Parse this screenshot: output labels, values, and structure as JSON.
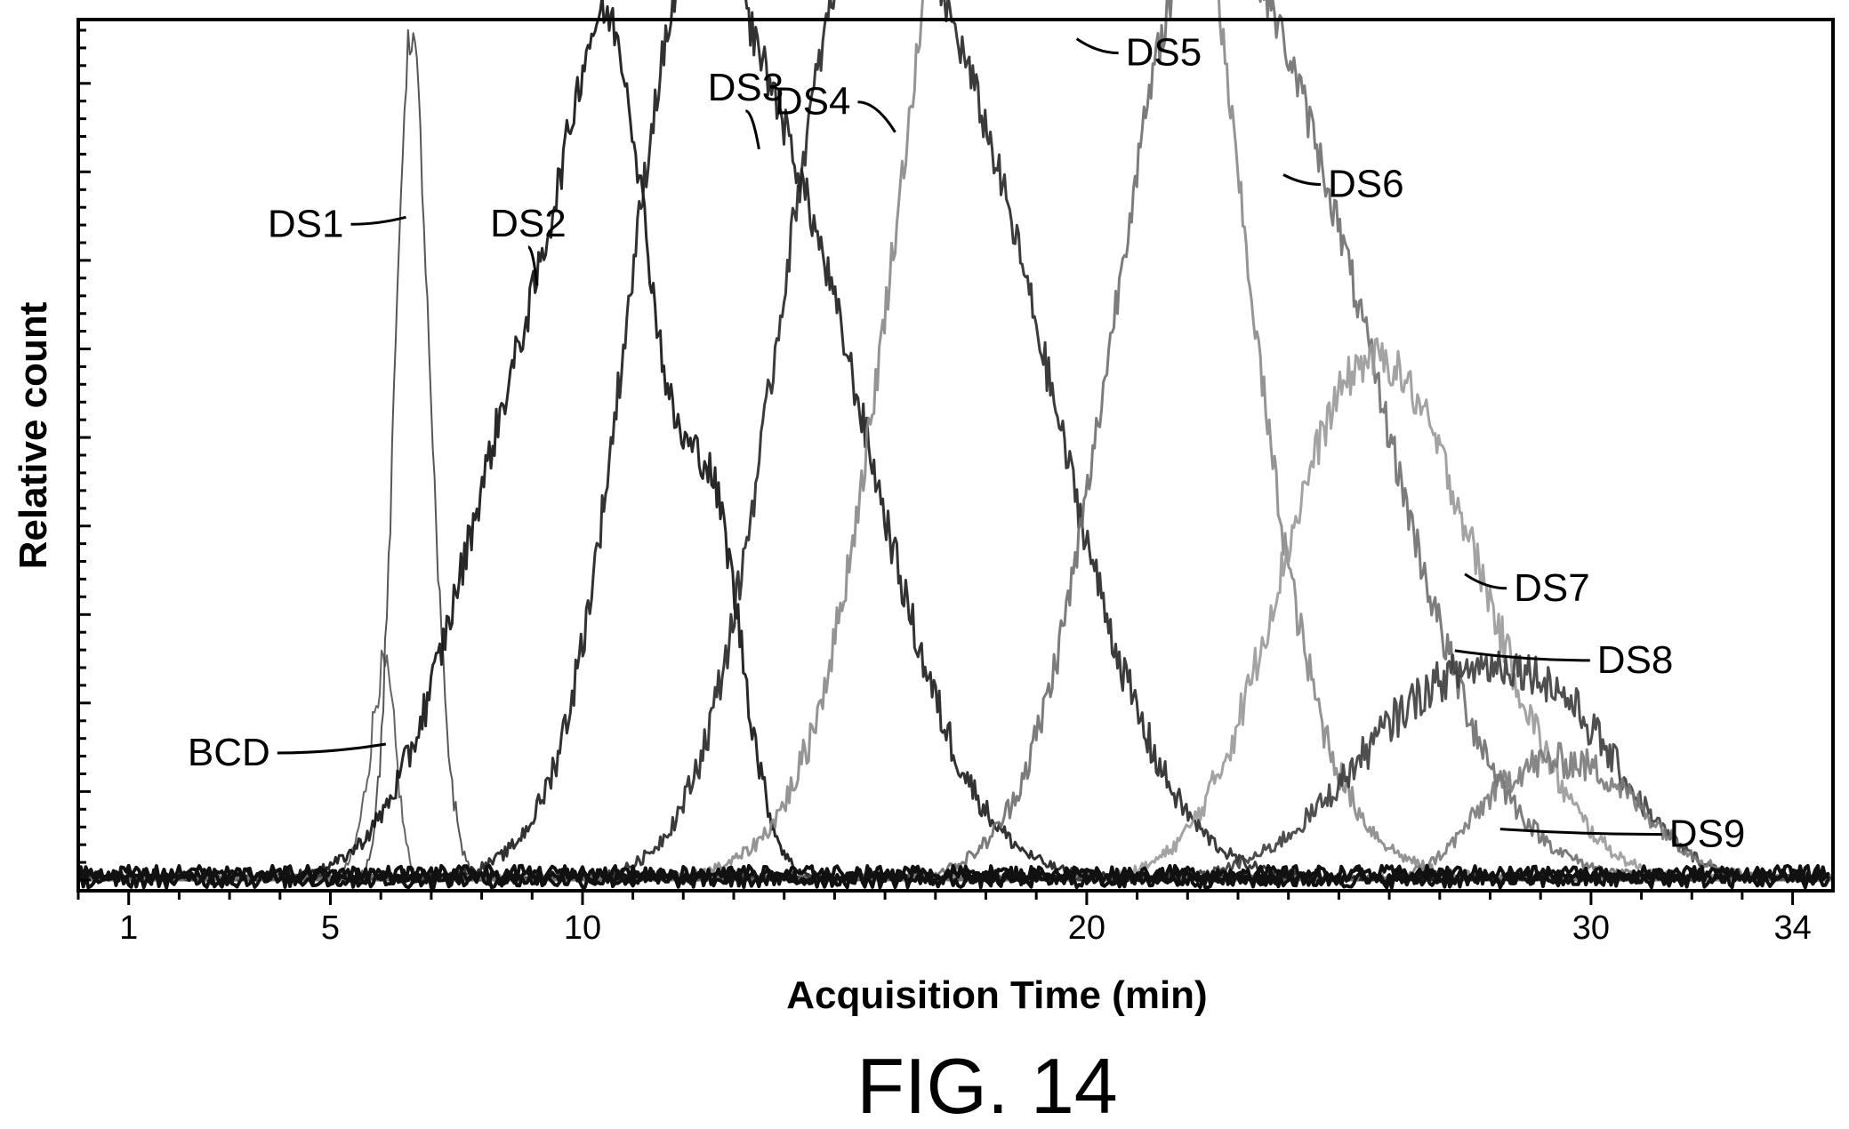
{
  "chart_data": {
    "type": "line",
    "title": "",
    "xlabel": "Acquisition Time (min)",
    "ylabel": "Relative count",
    "caption": "FIG. 14",
    "xlim": [
      0,
      34.8
    ],
    "ylim": [
      0,
      1.0
    ],
    "x_ticks": [
      1,
      5,
      10,
      20,
      30,
      34
    ],
    "x_minor_step": 1,
    "y_tick_labels": false,
    "grid": false,
    "legend": "none",
    "series": [
      {
        "name": "BCD",
        "color": "#555555",
        "peaks": [
          {
            "x": 6.1,
            "y": 0.165,
            "w": 0.22
          },
          {
            "x": 5.9,
            "y": 0.1,
            "w": 0.3
          }
        ]
      },
      {
        "name": "DS1",
        "color": "#444444",
        "peaks": [
          {
            "x": 6.55,
            "y": 0.8,
            "w": 0.3
          },
          {
            "x": 6.9,
            "y": 0.3,
            "w": 0.35
          }
        ]
      },
      {
        "name": "DS2",
        "color": "#111111",
        "peaks": [
          {
            "x": 9.3,
            "y": 0.64,
            "w": 1.6
          },
          {
            "x": 10.7,
            "y": 0.55,
            "w": 0.8
          },
          {
            "x": 12.6,
            "y": 0.36,
            "w": 0.6
          }
        ]
      },
      {
        "name": "DS3",
        "color": "#1c1c1c",
        "peaks": [
          {
            "x": 13.7,
            "y": 0.83,
            "w": 2.0
          },
          {
            "x": 11.8,
            "y": 0.5,
            "w": 1.1
          }
        ]
      },
      {
        "name": "DS4",
        "color": "#262626",
        "peaks": [
          {
            "x": 17.4,
            "y": 0.86,
            "w": 2.1
          },
          {
            "x": 15.0,
            "y": 0.6,
            "w": 1.4
          }
        ]
      },
      {
        "name": "DS5",
        "color": "#888888",
        "peaks": [
          {
            "x": 19.8,
            "y": 0.95,
            "w": 2.4
          },
          {
            "x": 17.6,
            "y": 0.7,
            "w": 1.5
          },
          {
            "x": 21.6,
            "y": 0.72,
            "w": 1.4
          }
        ]
      },
      {
        "name": "DS6",
        "color": "#6e6e6e",
        "peaks": [
          {
            "x": 23.8,
            "y": 0.86,
            "w": 2.2
          },
          {
            "x": 21.6,
            "y": 0.5,
            "w": 1.4
          }
        ]
      },
      {
        "name": "DS7",
        "color": "#999999",
        "peaks": [
          {
            "x": 27.0,
            "y": 0.33,
            "w": 1.6
          },
          {
            "x": 25.0,
            "y": 0.42,
            "w": 1.5
          }
        ]
      },
      {
        "name": "DS8",
        "color": "#3c3c3c",
        "peaks": [
          {
            "x": 27.2,
            "y": 0.22,
            "w": 1.9
          },
          {
            "x": 29.6,
            "y": 0.11,
            "w": 1.3
          }
        ]
      },
      {
        "name": "DS9",
        "color": "#7a7a7a",
        "peaks": [
          {
            "x": 29.8,
            "y": 0.13,
            "w": 1.3
          },
          {
            "x": 28.2,
            "y": 0.05,
            "w": 0.8
          }
        ]
      }
    ],
    "annotations": [
      {
        "text": "BCD",
        "x": 6.1,
        "y": 0.16
      },
      {
        "text": "DS1",
        "x": 6.5,
        "y": 0.78
      },
      {
        "text": "DS2",
        "x": 9.1,
        "y": 0.7
      },
      {
        "text": "DS3",
        "x": 13.5,
        "y": 0.86
      },
      {
        "text": "DS4",
        "x": 16.2,
        "y": 0.88
      },
      {
        "text": "DS5",
        "x": 19.8,
        "y": 0.99
      },
      {
        "text": "DS6",
        "x": 23.9,
        "y": 0.83
      },
      {
        "text": "DS7",
        "x": 27.5,
        "y": 0.36
      },
      {
        "text": "DS8",
        "x": 27.3,
        "y": 0.27
      },
      {
        "text": "DS9",
        "x": 28.2,
        "y": 0.06
      }
    ]
  }
}
